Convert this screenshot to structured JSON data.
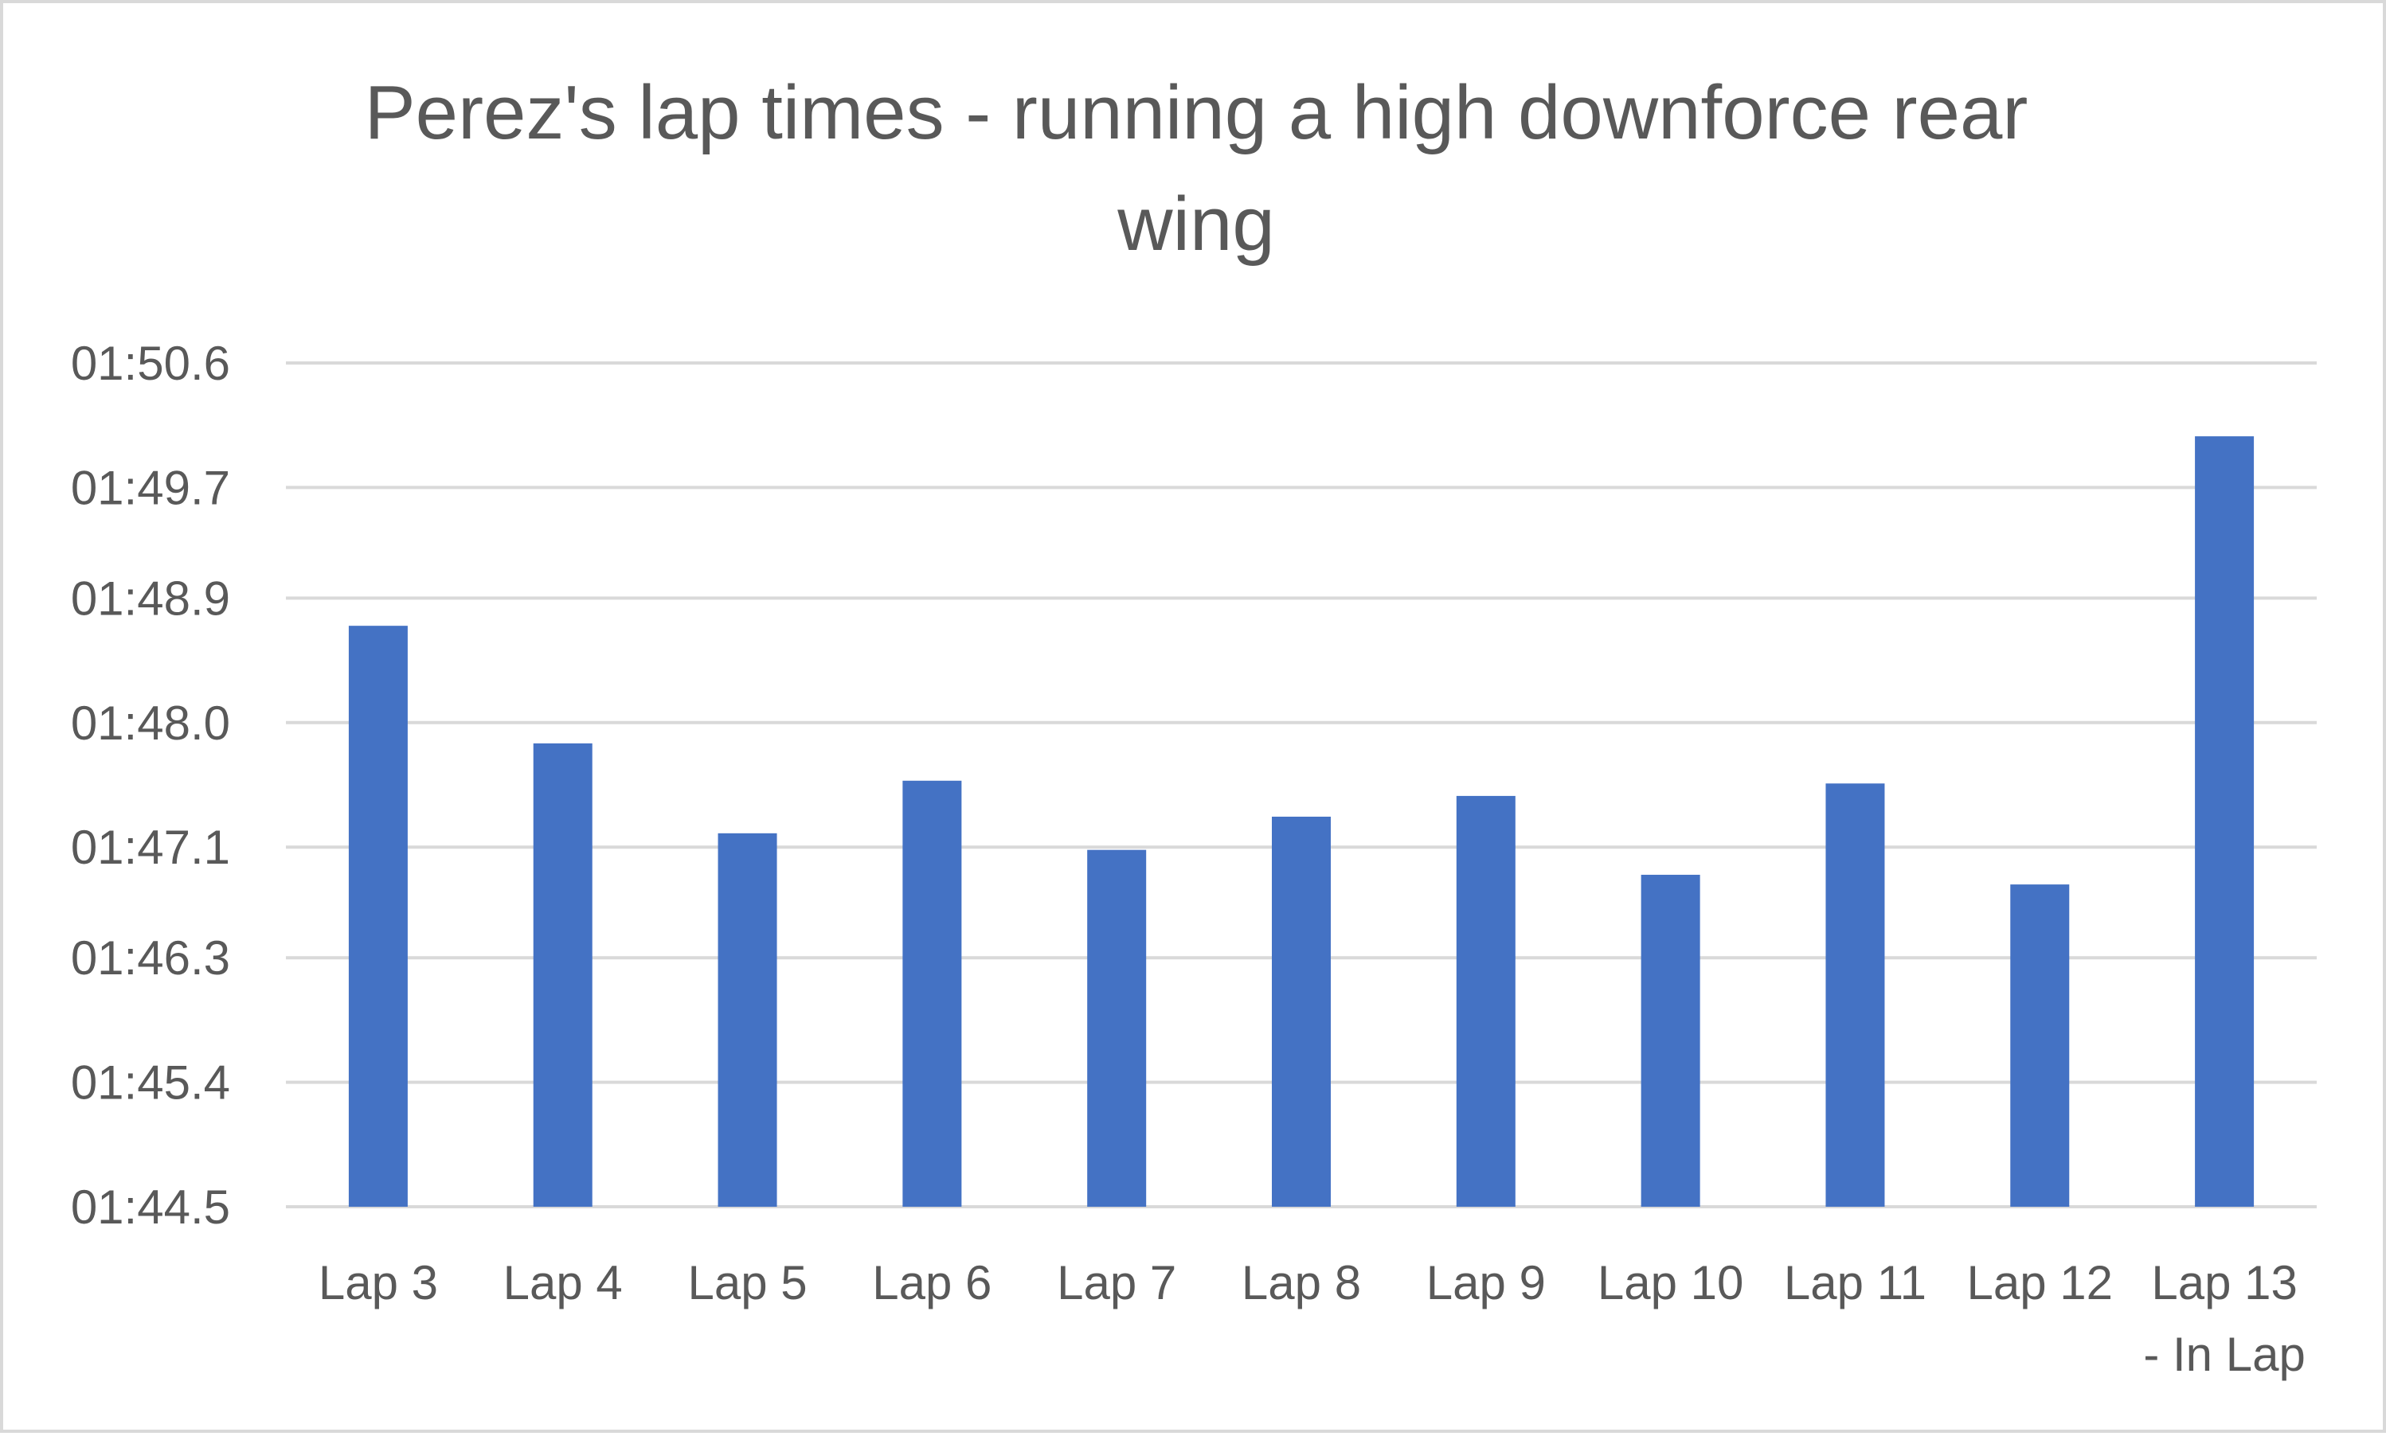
{
  "chart_data": {
    "type": "bar",
    "title": "Perez's lap times - running a high downforce rear wing",
    "title_lines": [
      "Perez's lap times - running a high downforce rear",
      "wing"
    ],
    "xlabel": "",
    "ylabel": "",
    "categories": [
      "Lap 3",
      "Lap 4",
      "Lap 5",
      "Lap 6",
      "Lap 7",
      "Lap 8",
      "Lap 9",
      "Lap 10",
      "Lap 11",
      "Lap 12",
      "Lap 13 - In Lap"
    ],
    "category_lines": [
      [
        "Lap 3"
      ],
      [
        "Lap 4"
      ],
      [
        "Lap 5"
      ],
      [
        "Lap 6"
      ],
      [
        "Lap 7"
      ],
      [
        "Lap 8"
      ],
      [
        "Lap 9"
      ],
      [
        "Lap 10"
      ],
      [
        "Lap 11"
      ],
      [
        "Lap 12"
      ],
      [
        "Lap 13",
        "- In Lap"
      ]
    ],
    "values_seconds": [
      108.7,
      107.85,
      107.2,
      107.58,
      107.08,
      107.32,
      107.47,
      106.9,
      107.56,
      106.83,
      110.07
    ],
    "y_tick_labels": [
      "01:44.5",
      "01:45.4",
      "01:46.3",
      "01:47.1",
      "01:48.0",
      "01:48.9",
      "01:49.7",
      "01:50.6"
    ],
    "y_tick_values_seconds": [
      104.5,
      105.4,
      106.3,
      107.1,
      108.0,
      108.9,
      109.7,
      110.6
    ],
    "ylim_seconds": [
      104.5,
      110.6
    ],
    "grid": true,
    "legend": "none",
    "bar_color": "#4472c4"
  }
}
